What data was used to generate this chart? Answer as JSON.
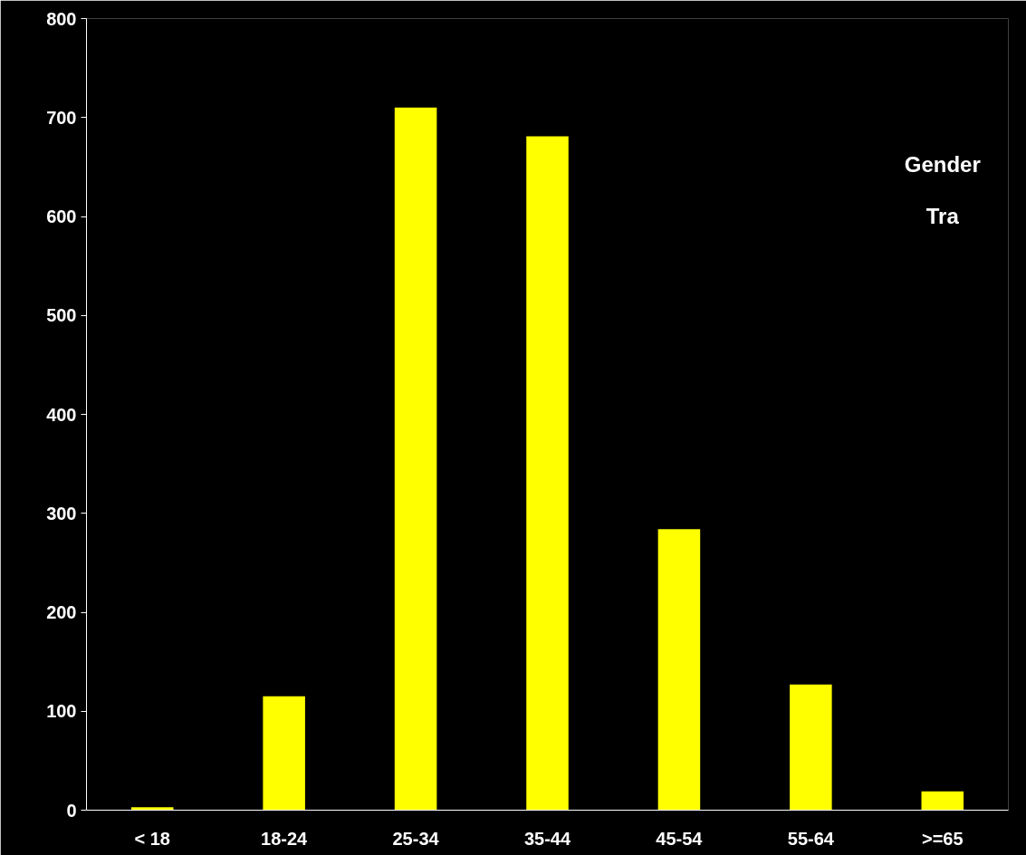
{
  "chart_data": {
    "type": "bar",
    "categories": [
      "< 18",
      "18-24",
      "25-34",
      "35-44",
      "45-54",
      "55-64",
      ">=65"
    ],
    "values": [
      3,
      115,
      710,
      681,
      284,
      127,
      19
    ],
    "color": "#ffff00",
    "ylim": [
      0,
      800
    ],
    "yticks": [
      0,
      100,
      200,
      300,
      400,
      500,
      600,
      700,
      800
    ],
    "grid": false,
    "annotations": [
      "Gender",
      "Tra"
    ]
  }
}
